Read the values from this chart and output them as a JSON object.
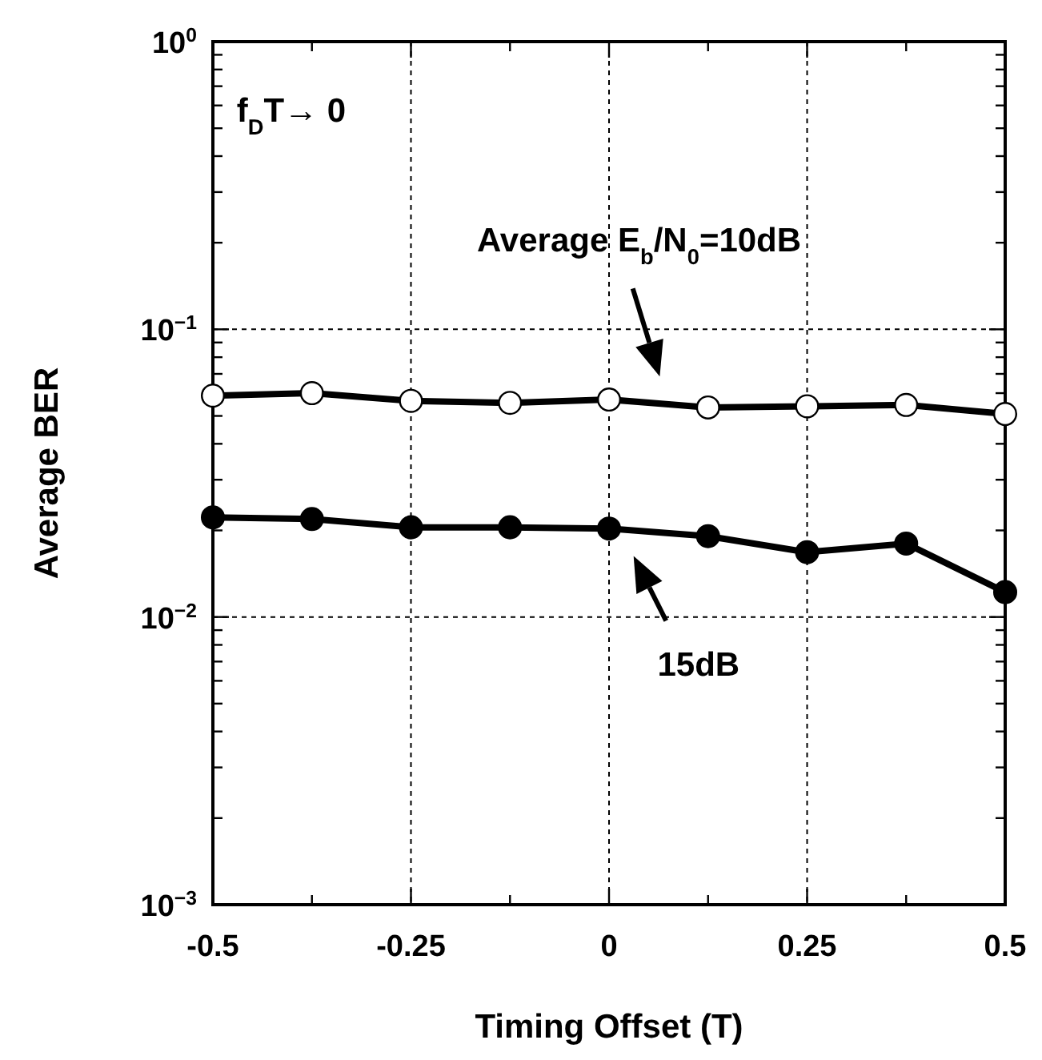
{
  "chart_data": {
    "type": "line",
    "xlabel": "Timing Offset (T)",
    "ylabel": "Average BER",
    "x": [
      -0.5,
      -0.375,
      -0.25,
      -0.125,
      0,
      0.125,
      0.25,
      0.375,
      0.5
    ],
    "series": [
      {
        "color": "#000000",
        "marker": "circle",
        "values": [
          0.0588,
          0.06,
          0.0564,
          0.0555,
          0.057,
          0.0535,
          0.054,
          0.0546,
          0.0508
        ]
      },
      {
        "color": "#000000",
        "marker": "circle",
        "values": [
          0.0222,
          0.0219,
          0.0205,
          0.0205,
          0.0203,
          0.0191,
          0.0168,
          0.018,
          0.0122
        ]
      }
    ],
    "log": true,
    "line_style": "solid",
    "grid": true,
    "xlim": [
      -0.5,
      0.5
    ],
    "xticks": [
      -0.5,
      {
        "value": -0.375,
        "label": null
      },
      -0.25,
      {
        "value": -0.125,
        "label": null
      },
      0,
      {
        "value": 0.125,
        "label": null
      },
      0.25,
      {
        "value": 0.375,
        "label": null
      },
      0.5
    ],
    "ylim": [
      0.001,
      1
    ],
    "yticks": [
      {
        "value": 0.001,
        "label": "10$^{−3}$"
      },
      {
        "value": 0.002,
        "label": null
      },
      {
        "value": 0.003,
        "label": null
      },
      {
        "value": 0.004,
        "label": null
      },
      {
        "value": 0.005,
        "label": null
      },
      {
        "value": 0.006,
        "label": null
      },
      {
        "value": 0.007,
        "label": null
      },
      {
        "value": 0.008,
        "label": null
      },
      {
        "value": 0.009,
        "label": null
      },
      {
        "value": 0.01,
        "label": "10$^{−2}$"
      },
      {
        "value": 0.02,
        "label": null
      },
      {
        "value": 0.03,
        "label": null
      },
      {
        "value": 0.04,
        "label": null
      },
      {
        "value": 0.05,
        "label": null
      },
      {
        "value": 0.06,
        "label": null
      },
      {
        "value": 0.07,
        "label": null
      },
      {
        "value": 0.08,
        "label": null
      },
      {
        "value": 0.09,
        "label": null
      },
      {
        "value": 0.1,
        "label": "10$^{−1}$"
      },
      {
        "value": 0.2,
        "label": null
      },
      {
        "value": 0.3,
        "label": null
      },
      {
        "value": 0.4,
        "label": null
      },
      {
        "value": 0.5,
        "label": null
      },
      {
        "value": 0.6,
        "label": null
      },
      {
        "value": 0.7,
        "label": null
      },
      {
        "value": 0.8,
        "label": null
      },
      {
        "value": 0.9,
        "label": null
      },
      {
        "value": 1,
        "label": "10$^{0}$"
      }
    ],
    "annotations": [
      "f$_{D}$T→ 0",
      "Average E$_{b}$/N$_{0}$=10dB",
      "15dB"
    ]
  }
}
